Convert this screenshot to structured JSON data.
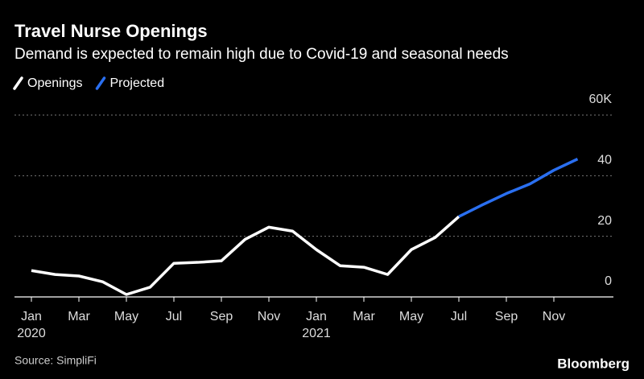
{
  "chart_data": {
    "type": "line",
    "title": "Travel Nurse Openings",
    "subtitle": "Demand is expected to remain high due to Covid-19 and seasonal needs",
    "categories": [
      "Jan",
      null,
      "Mar",
      null,
      "May",
      null,
      "Jul",
      null,
      "Sep",
      null,
      "Nov",
      null,
      "Jan",
      null,
      "Mar",
      null,
      "May",
      null,
      "Jul",
      null,
      "Sep",
      null,
      "Nov",
      null
    ],
    "years": [
      "2020",
      "2021"
    ],
    "series": [
      {
        "name": "Openings",
        "color": "#ffffff",
        "values": [
          8.7,
          7.4,
          6.9,
          5.0,
          0.8,
          3.2,
          11.1,
          11.4,
          11.9,
          19.0,
          23.0,
          21.7,
          15.6,
          10.3,
          9.8,
          7.4,
          15.6,
          19.6,
          26.5,
          null,
          null,
          null,
          null,
          null
        ]
      },
      {
        "name": "Projected",
        "color": "#2a6ff0",
        "values": [
          null,
          null,
          null,
          null,
          null,
          null,
          null,
          null,
          null,
          null,
          null,
          null,
          null,
          null,
          null,
          null,
          null,
          null,
          26.5,
          30.4,
          34.1,
          37.3,
          41.8,
          45.5
        ]
      }
    ],
    "ylim": [
      0,
      60
    ],
    "yticks": [
      0,
      20,
      40,
      {
        "value": 60,
        "label": "60K"
      }
    ],
    "grid": true,
    "source": "Source: SimpliFi",
    "brand": "Bloomberg"
  }
}
